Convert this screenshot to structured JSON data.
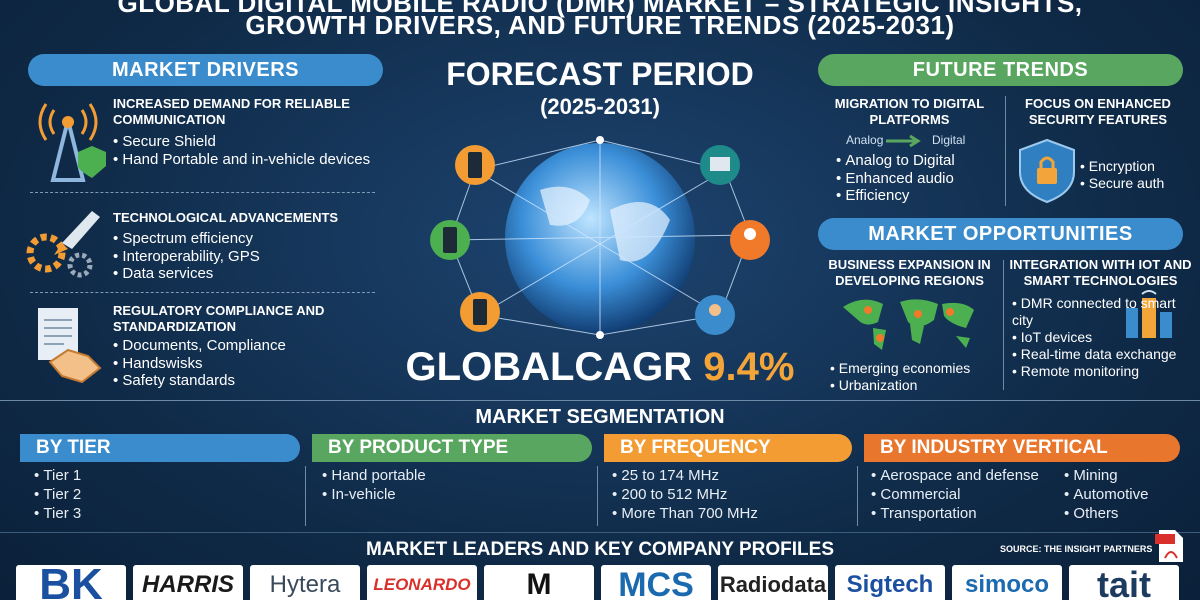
{
  "header": {
    "title_line_1": "GLOBAL DIGITAL MOBILE RADIO (DMR) MARKET – STRATEGIC INSIGHTS,",
    "title_line_2": "GROWTH DRIVERS, AND FUTURE TRENDS (2025-2031)"
  },
  "market_drivers": {
    "title": "MARKET DRIVERS",
    "items": [
      {
        "heading": "INCREASED DEMAND FOR RELIABLE COMMUNICATION",
        "points": [
          "Secure Shield",
          "Hand Portable and in-vehicle devices"
        ]
      },
      {
        "heading": "TECHNOLOGICAL ADVANCEMENTS",
        "points": [
          "Spectrum efficiency",
          "Interoperability, GPS",
          "Data services"
        ]
      },
      {
        "heading": "REGULATORY COMPLIANCE AND STANDARDIZATION",
        "points": [
          "Documents, Compliance",
          "Handswisks",
          "Safety standards"
        ]
      }
    ]
  },
  "center": {
    "forecast_heading": "FORECAST PERIOD",
    "forecast_years": "(2025-2031)",
    "cagr_label": "GLOBALCAGR",
    "cagr_value": "9.4%"
  },
  "future_trends": {
    "title": "FUTURE TRENDS",
    "items": [
      {
        "heading": "MIGRATION TO DIGITAL PLATFORMS",
        "from": "Analog",
        "to": "Digital",
        "points": [
          "Analog to Digital",
          "Enhanced audio",
          "Efficiency"
        ]
      },
      {
        "heading": "FOCUS ON ENHANCED SECURITY FEATURES",
        "points": [
          "Encryption",
          "Secure auth"
        ]
      }
    ]
  },
  "market_opportunities": {
    "title": "MARKET OPPORTUNITIES",
    "items": [
      {
        "heading": "BUSINESS EXPANSION IN DEVELOPING REGIONS",
        "points": [
          "Emerging economies",
          "Urbanization"
        ]
      },
      {
        "heading": "INTEGRATION WITH IOT AND SMART TECHNOLOGIES",
        "points": [
          "DMR connected to smart city",
          "IoT devices",
          "Real-time data exchange",
          "Remote monitoring"
        ]
      }
    ]
  },
  "segmentation": {
    "title": "MARKET SEGMENTATION",
    "segments": [
      {
        "name": "BY TIER",
        "items": [
          "Tier 1",
          "Tier 2",
          "Tier 3"
        ]
      },
      {
        "name": "BY PRODUCT TYPE",
        "items": [
          "Hand portable",
          "In-vehicle"
        ]
      },
      {
        "name": "BY FREQUENCY",
        "items": [
          "25 to 174 MHz",
          "200 to 512 MHz",
          "More Than 700 MHz"
        ]
      },
      {
        "name": "BY INDUSTRY VERTICAL",
        "items": [
          "Aerospace and defense",
          "Commercial",
          "Transportation"
        ],
        "items_col2": [
          "Mining",
          "Automotive",
          "Others"
        ]
      }
    ]
  },
  "leaders": {
    "title": "MARKET LEADERS AND KEY COMPANY PROFILES",
    "source": "SOURCE: THE INSIGHT PARTNERS",
    "logos": [
      "BK",
      "HARRIS",
      "Hytera",
      "LEONARDO",
      "M",
      "MCS",
      "Radiodata",
      "Sigtech",
      "simoco",
      "tait"
    ]
  }
}
